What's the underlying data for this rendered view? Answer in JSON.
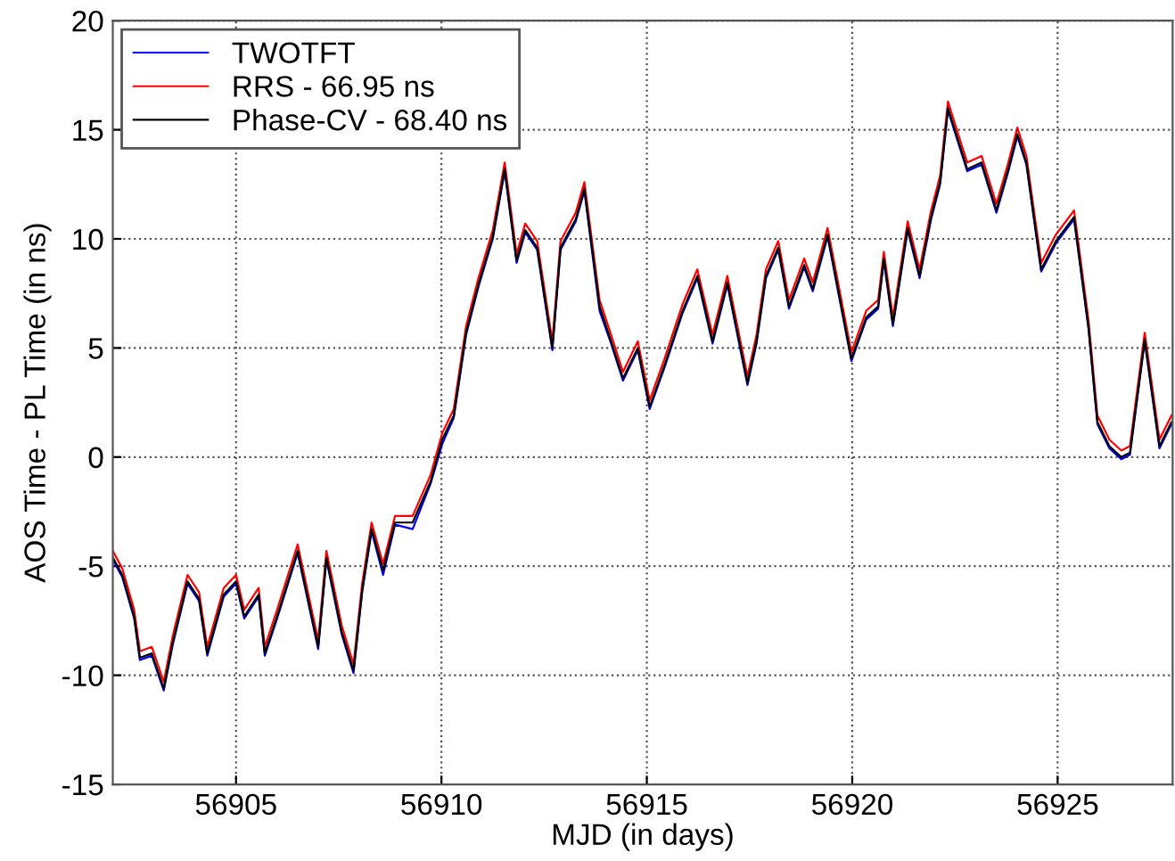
{
  "chart_data": {
    "type": "line",
    "xlabel": "MJD (in days)",
    "ylabel": "AOS Time - PL Time (in ns)",
    "x": [
      56902.0,
      56902.23,
      56902.52,
      56902.66,
      56902.95,
      56903.24,
      56903.46,
      56903.82,
      56904.1,
      56904.3,
      56904.7,
      56905.0,
      56905.2,
      56905.55,
      56905.7,
      56906.0,
      56906.5,
      56907.0,
      56907.2,
      56907.57,
      56907.86,
      56908.07,
      56908.3,
      56908.58,
      56908.87,
      56909.3,
      56909.74,
      56910.02,
      56910.3,
      56910.6,
      56910.9,
      56911.25,
      56911.54,
      56911.83,
      56912.04,
      56912.33,
      56912.7,
      56912.9,
      56913.27,
      56913.48,
      56913.85,
      56914.13,
      56914.42,
      56914.78,
      56915.07,
      56915.43,
      56915.87,
      56916.23,
      56916.6,
      56916.96,
      56917.45,
      56917.67,
      56917.9,
      56918.2,
      56918.46,
      56918.83,
      56919.04,
      56919.4,
      56919.98,
      56920.34,
      56920.63,
      56920.77,
      56920.99,
      56921.35,
      56921.64,
      56921.92,
      56922.14,
      56922.33,
      56922.58,
      56922.8,
      56923.15,
      56923.51,
      56923.8,
      56924.02,
      56924.24,
      56924.6,
      56924.96,
      56925.4,
      56925.75,
      56925.97,
      56926.26,
      56926.55,
      56926.76,
      56927.12,
      56927.48,
      56927.77
    ],
    "series": [
      {
        "name": "TWOTFT",
        "color": "#0000ff",
        "values": [
          -4.7,
          -5.5,
          -7.4,
          -9.3,
          -9.1,
          -10.7,
          -8.6,
          -5.8,
          -6.6,
          -9.1,
          -6.4,
          -5.8,
          -7.4,
          -6.4,
          -9.1,
          -7.4,
          -4.4,
          -8.8,
          -4.7,
          -8.1,
          -9.9,
          -6.2,
          -3.4,
          -5.4,
          -3.1,
          -3.3,
          -1.2,
          0.6,
          1.8,
          5.6,
          7.8,
          10.0,
          13.1,
          8.9,
          10.3,
          9.5,
          4.9,
          9.5,
          10.8,
          12.2,
          6.7,
          5.2,
          3.5,
          4.9,
          2.2,
          4.1,
          6.6,
          8.2,
          5.2,
          7.9,
          3.3,
          5.2,
          8.2,
          9.5,
          6.8,
          8.7,
          7.6,
          10.1,
          4.4,
          6.3,
          6.8,
          9.0,
          6.0,
          10.4,
          8.2,
          10.9,
          12.5,
          15.9,
          14.4,
          13.1,
          13.4,
          11.2,
          13.1,
          14.7,
          13.4,
          8.5,
          9.8,
          10.9,
          5.9,
          1.5,
          0.4,
          -0.1,
          0.1,
          5.3,
          0.4,
          1.5
        ]
      },
      {
        "name": "RRS - 66.95 ns",
        "color": "#ff0000",
        "values": [
          -4.3,
          -5.1,
          -7.0,
          -8.9,
          -8.7,
          -10.3,
          -8.2,
          -5.4,
          -6.2,
          -8.7,
          -6.0,
          -5.4,
          -7.0,
          -6.0,
          -8.7,
          -7.0,
          -4.0,
          -8.4,
          -4.3,
          -7.7,
          -9.5,
          -5.8,
          -3.0,
          -4.9,
          -2.7,
          -2.7,
          -0.8,
          1.1,
          2.2,
          6.0,
          8.2,
          10.4,
          13.5,
          9.3,
          10.7,
          9.9,
          5.3,
          9.9,
          11.2,
          12.6,
          7.2,
          5.6,
          3.9,
          5.3,
          2.6,
          4.5,
          7.0,
          8.6,
          5.6,
          8.3,
          3.7,
          5.6,
          8.6,
          9.9,
          7.2,
          9.1,
          8.0,
          10.5,
          4.8,
          6.7,
          7.2,
          9.4,
          6.4,
          10.8,
          8.6,
          11.3,
          12.9,
          16.3,
          14.8,
          13.5,
          13.8,
          11.6,
          13.5,
          15.1,
          13.8,
          8.9,
          10.2,
          11.3,
          6.3,
          1.9,
          0.8,
          0.3,
          0.5,
          5.7,
          0.8,
          1.9
        ]
      },
      {
        "name": "Phase-CV - 68.40 ns",
        "color": "#000000",
        "values": [
          -4.6,
          -5.4,
          -7.3,
          -9.2,
          -9.0,
          -10.6,
          -8.5,
          -5.7,
          -6.5,
          -9.0,
          -6.3,
          -5.7,
          -7.3,
          -6.3,
          -9.0,
          -7.3,
          -4.3,
          -8.7,
          -4.6,
          -8.0,
          -9.8,
          -6.1,
          -3.3,
          -5.2,
          -3.0,
          -3.0,
          -1.1,
          0.8,
          1.9,
          5.7,
          7.9,
          10.1,
          13.2,
          9.0,
          10.4,
          9.6,
          5.0,
          9.6,
          10.9,
          12.3,
          6.9,
          5.3,
          3.6,
          5.0,
          2.3,
          4.2,
          6.7,
          8.3,
          5.3,
          8.0,
          3.4,
          5.3,
          8.3,
          9.6,
          6.9,
          8.8,
          7.7,
          10.2,
          4.5,
          6.4,
          6.9,
          9.1,
          6.1,
          10.5,
          8.3,
          11.0,
          12.6,
          16.0,
          14.5,
          13.2,
          13.5,
          11.3,
          13.2,
          14.8,
          13.5,
          8.6,
          9.9,
          11.0,
          6.0,
          1.6,
          0.5,
          0.0,
          0.2,
          5.4,
          0.5,
          1.6
        ]
      }
    ],
    "xlim": [
      56902.0,
      56927.8
    ],
    "xticks": [
      56905,
      56910,
      56915,
      56920,
      56925
    ],
    "ylim": [
      -15,
      20
    ],
    "yticks": [
      -15,
      -10,
      -5,
      0,
      5,
      10,
      15,
      20
    ],
    "grid": true,
    "legend": "top left",
    "line_style": "solid"
  }
}
